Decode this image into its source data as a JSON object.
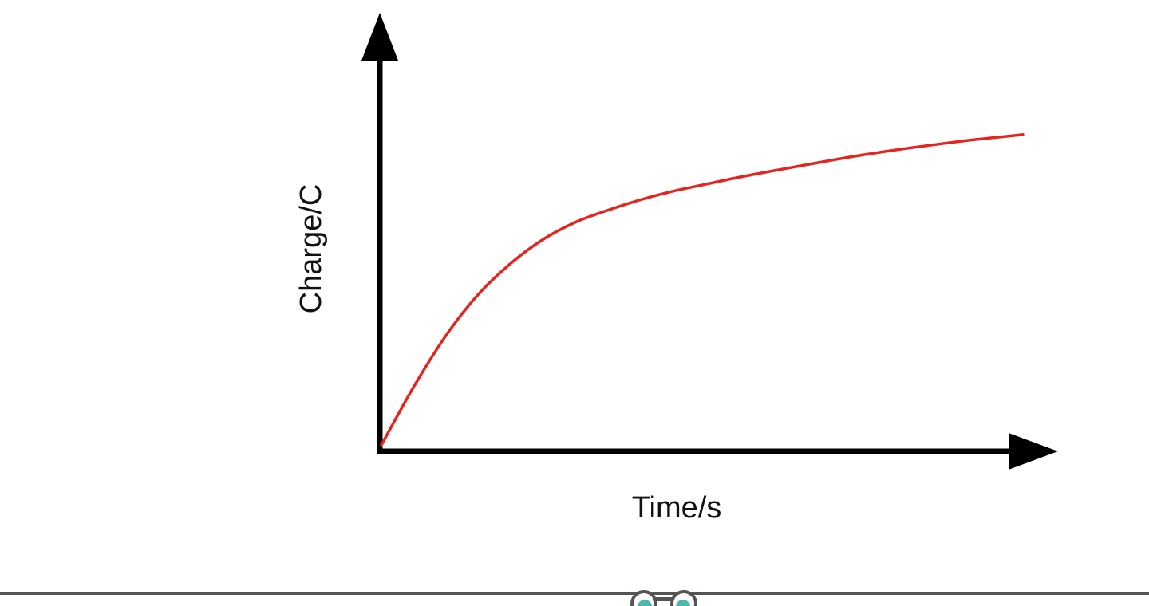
{
  "chart_data": {
    "type": "line",
    "title": "",
    "xlabel": "Time/s",
    "ylabel": "Charge/C",
    "ticks": "none",
    "grid": false,
    "legend": "none",
    "xlim": [
      0,
      10
    ],
    "ylim": [
      0,
      10
    ],
    "series": [
      {
        "color": "#e8231d",
        "x": [
          0,
          0.5,
          1,
          1.5,
          2,
          2.5,
          3,
          3.5,
          4,
          4.5,
          5,
          5.5,
          6,
          6.5,
          7,
          7.5,
          8,
          8.5,
          9,
          9.5,
          9.9
        ],
        "y": [
          0,
          1.7,
          3.2,
          4.4,
          5.3,
          6.0,
          6.5,
          6.85,
          7.15,
          7.4,
          7.6,
          7.8,
          7.98,
          8.15,
          8.32,
          8.48,
          8.62,
          8.75,
          8.87,
          8.97,
          9.05
        ]
      }
    ]
  },
  "colors": {
    "axis": "#000000",
    "curve": "#e8231d",
    "footer_bar": "#555555"
  },
  "footer": {
    "icon": "glasses-mascot-icon"
  }
}
